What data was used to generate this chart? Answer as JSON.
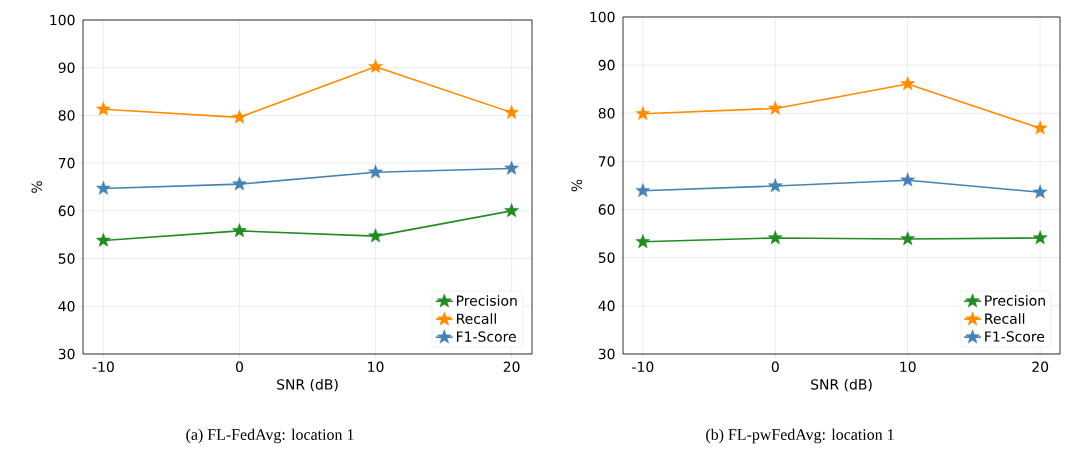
{
  "chart_data": [
    {
      "type": "line",
      "x": [
        -10,
        0,
        10,
        20
      ],
      "xlabel": "SNR (dB)",
      "ylabel": "%",
      "xlim": [
        -11.5,
        21.5
      ],
      "ylim": [
        30,
        100
      ],
      "xticks": [
        -10,
        0,
        10,
        20
      ],
      "yticks": [
        30,
        40,
        50,
        60,
        70,
        80,
        90,
        100
      ],
      "grid": true,
      "legend": "bottom right",
      "marker": "star",
      "line_style": "solid",
      "series": [
        {
          "name": "Precision",
          "color": "#228b22",
          "values": [
            53.8,
            55.8,
            54.7,
            60.0
          ]
        },
        {
          "name": "Recall",
          "color": "#ff8c00",
          "values": [
            81.3,
            79.6,
            90.2,
            80.6
          ]
        },
        {
          "name": "F1-Score",
          "color": "#4682b4",
          "values": [
            64.7,
            65.6,
            68.1,
            68.9
          ]
        }
      ],
      "annotations": [
        "(a) FL-FedAvg: location 1"
      ]
    },
    {
      "type": "line",
      "x": [
        -10,
        0,
        10,
        20
      ],
      "xlabel": "SNR (dB)",
      "ylabel": "%",
      "xlim": [
        -11.5,
        21.5
      ],
      "ylim": [
        30,
        100
      ],
      "xticks": [
        -10,
        0,
        10,
        20
      ],
      "yticks": [
        30,
        40,
        50,
        60,
        70,
        80,
        90,
        100
      ],
      "grid": true,
      "legend": "bottom right",
      "marker": "star",
      "line_style": "solid",
      "series": [
        {
          "name": "Precision",
          "color": "#228b22",
          "values": [
            53.3,
            54.1,
            53.9,
            54.1
          ]
        },
        {
          "name": "Recall",
          "color": "#ff8c00",
          "values": [
            79.9,
            81.0,
            86.1,
            76.9
          ]
        },
        {
          "name": "F1-Score",
          "color": "#4682b4",
          "values": [
            63.9,
            64.9,
            66.1,
            63.6
          ]
        }
      ],
      "annotations": [
        "(b) FL-pwFedAvg: location 1"
      ]
    }
  ]
}
